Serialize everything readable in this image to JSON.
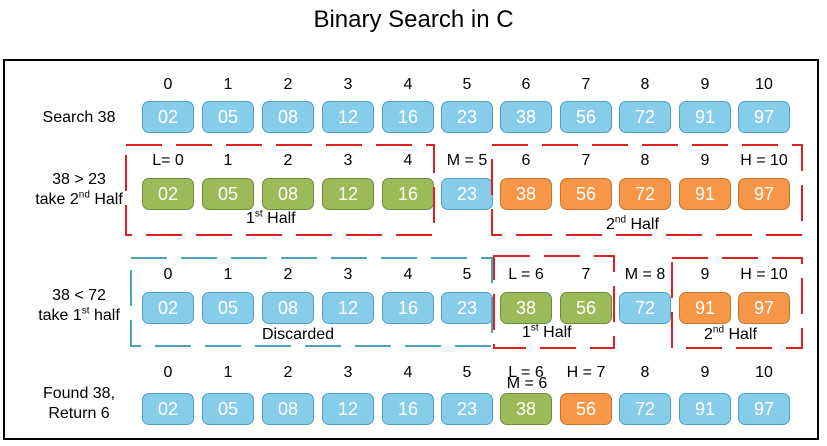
{
  "title": "Binary Search in C",
  "array": [
    "02",
    "05",
    "08",
    "12",
    "16",
    "23",
    "38",
    "56",
    "72",
    "91",
    "97"
  ],
  "rows": [
    {
      "label": [
        "Search 38"
      ],
      "indices": [
        "0",
        "1",
        "2",
        "3",
        "4",
        "5",
        "6",
        "7",
        "8",
        "9",
        "10"
      ],
      "colors": [
        "blue",
        "blue",
        "blue",
        "blue",
        "blue",
        "blue",
        "blue",
        "blue",
        "blue",
        "blue",
        "blue"
      ]
    },
    {
      "label": [
        "38 > 23",
        "take 2",
        "nd",
        " Half"
      ],
      "indices": [
        "L= 0",
        "1",
        "2",
        "3",
        "4",
        "M = 5",
        "6",
        "7",
        "8",
        "9",
        "H = 10"
      ],
      "colors": [
        "green",
        "green",
        "green",
        "green",
        "green",
        "blue",
        "orange",
        "orange",
        "orange",
        "orange",
        "orange"
      ]
    },
    {
      "label": [
        "38 < 72",
        "take 1",
        "st",
        " half"
      ],
      "indices": [
        "0",
        "1",
        "2",
        "3",
        "4",
        "5",
        "L = 6",
        "7",
        "M = 8",
        "9",
        "H = 10"
      ],
      "colors": [
        "blue",
        "blue",
        "blue",
        "blue",
        "blue",
        "blue",
        "green",
        "green",
        "blue",
        "orange",
        "orange"
      ]
    },
    {
      "label": [
        "Found 38,",
        "Return 6"
      ],
      "indices": [
        "0",
        "1",
        "2",
        "3",
        "4",
        "5",
        "L = 6",
        "H = 7",
        "8",
        "9",
        "10"
      ],
      "extra_index_6": "M = 6",
      "colors": [
        "blue",
        "blue",
        "blue",
        "blue",
        "blue",
        "blue",
        "green",
        "orange",
        "blue",
        "blue",
        "blue"
      ]
    }
  ],
  "notes": {
    "r1_first": [
      "1",
      "st",
      " Half"
    ],
    "r1_second": [
      "2",
      "nd",
      " Half"
    ],
    "r2_discarded": "Discarded",
    "r2_first": [
      "1",
      "st",
      " Half"
    ],
    "r2_second": [
      "2",
      "nd",
      " Half"
    ]
  },
  "colors": {
    "blue": "#87cdea",
    "green": "#9bbb59",
    "orange": "#f79646",
    "red_dash": "#e02020",
    "teal_dash": "#4ba3b8"
  }
}
